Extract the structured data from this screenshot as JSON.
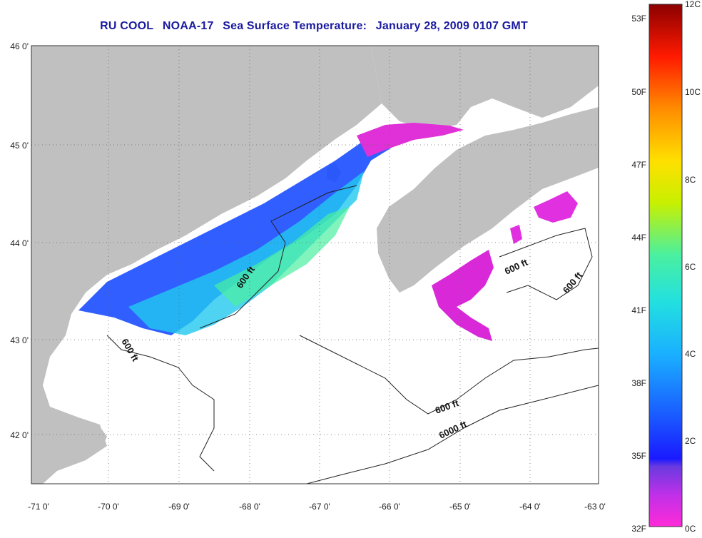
{
  "title": {
    "source": "RU COOL",
    "satellite": "NOAA-17",
    "product": "Sea Surface Temperature:",
    "timestamp": "January 28, 2009 0107 GMT"
  },
  "axes": {
    "lat_labels": [
      "46 0'",
      "45 0'",
      "44 0'",
      "43 0'",
      "42 0'"
    ],
    "lon_labels": [
      "-71 0'",
      "-70 0'",
      "-69 0'",
      "-68 0'",
      "-67 0'",
      "-66 0'",
      "-65 0'",
      "-64 0'",
      "-63 0'"
    ]
  },
  "contours": {
    "labels": [
      "600 ft",
      "600 ft",
      "600 ft",
      "600 ft",
      "600 ft",
      "6000 ft"
    ]
  },
  "colorbar": {
    "fahrenheit_labels": [
      "53F",
      "50F",
      "47F",
      "44F",
      "41F",
      "38F",
      "35F",
      "32F"
    ],
    "celsius_labels": [
      "12C",
      "10C",
      "8C",
      "6C",
      "4C",
      "2C",
      "0C"
    ]
  },
  "colors": {
    "land": "#c0c0c0",
    "water": "#ffffff",
    "title": "#1a1aa0",
    "cold": "#ff2ad8",
    "cool": "#1a4cff",
    "mid": "#22e0e0",
    "warm": "#c8f000",
    "hot": "#8b0000"
  }
}
